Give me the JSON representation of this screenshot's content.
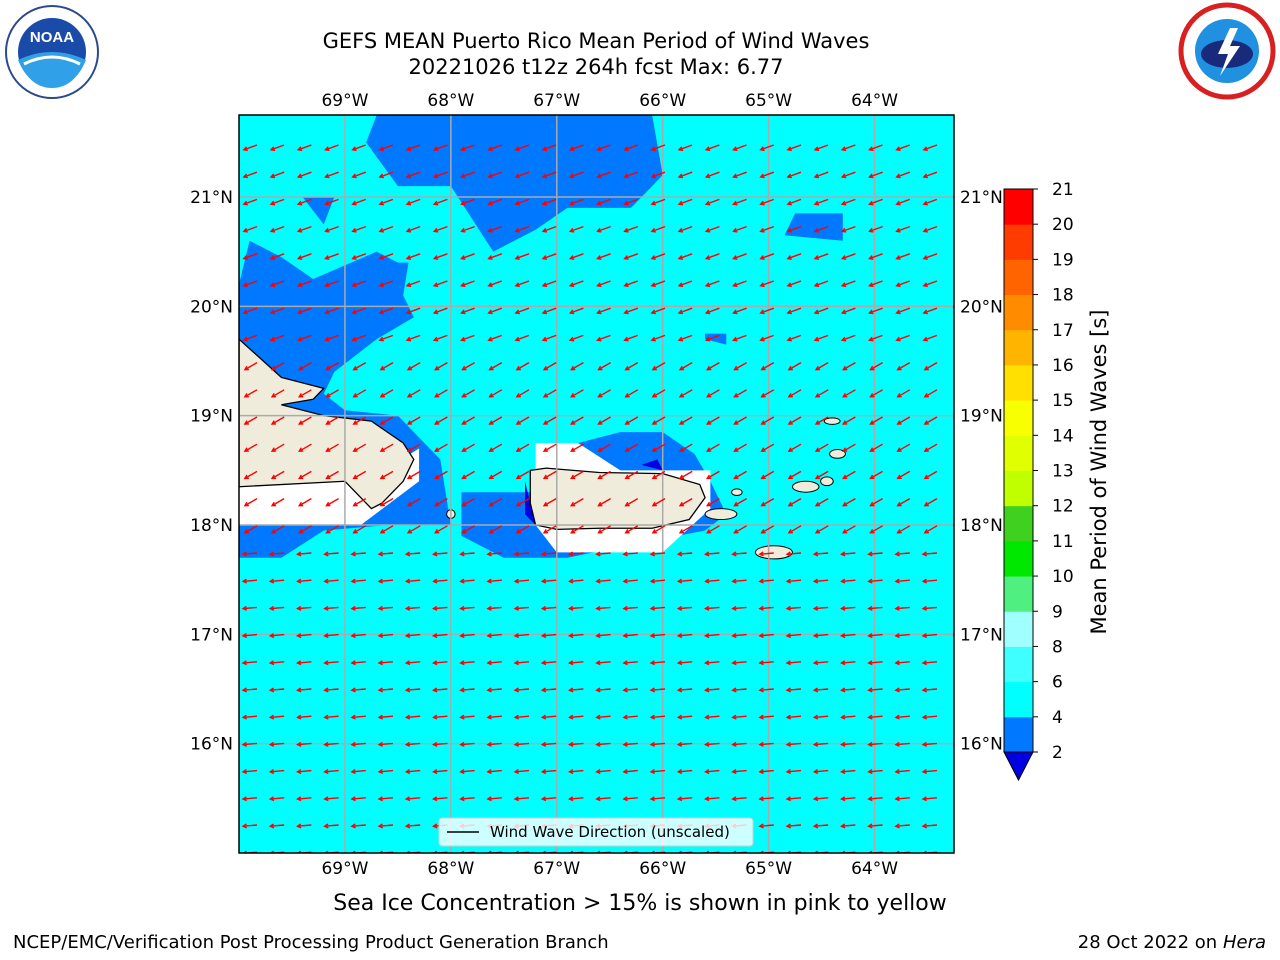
{
  "header": {
    "title_line1": "GEFS MEAN Puerto Rico Mean Period of Wind Waves",
    "title_line2": "20221026 t12z 264h fcst   Max: 6.77"
  },
  "logos": {
    "left": {
      "icon": "noaa-logo",
      "text": "NOAA"
    },
    "right": {
      "icon": "national-weather-service-logo"
    }
  },
  "chart_data": {
    "type": "heatmap",
    "variable": "Mean Period of Wind Waves",
    "max_value": 6.77,
    "axes": {
      "lon_ticks": [
        "69°W",
        "68°W",
        "67°W",
        "66°W",
        "65°W",
        "64°W"
      ],
      "lon_values": [
        -69,
        -68,
        -67,
        -66,
        -65,
        -64
      ],
      "lat_ticks": [
        "21°N",
        "20°N",
        "19°N",
        "18°N",
        "17°N",
        "16°N"
      ],
      "lat_values": [
        21,
        20,
        19,
        18,
        17,
        16
      ],
      "lon_range": [
        -70.0,
        -63.25
      ],
      "lat_range": [
        15.0,
        21.75
      ],
      "grid": true
    },
    "dominant_bin": "4-6 s (cyan) over most of the domain; 2-4 s (blue) near coasts and north of Hispaniola",
    "vectors": {
      "label": "Wind Wave Direction (unscaled)",
      "direction": "mostly toward west / west-southwest",
      "color": "#ff0000"
    },
    "colorbar": {
      "label": "Mean Period of Wind Waves [s]",
      "ticks": [
        2,
        4,
        6,
        8,
        9,
        10,
        11,
        12,
        13,
        14,
        15,
        16,
        17,
        18,
        19,
        20,
        21
      ],
      "extend": "min",
      "colors": [
        "#0000e0",
        "#0078ff",
        "#00ffff",
        "#40ffff",
        "#a0ffff",
        "#50f080",
        "#00e800",
        "#40d020",
        "#c0ff00",
        "#e0ff00",
        "#f8ff00",
        "#ffe000",
        "#ffb400",
        "#ff8c00",
        "#ff6400",
        "#ff3c00",
        "#ff0000"
      ]
    }
  },
  "legend": {
    "label": "Wind Wave Direction (unscaled)"
  },
  "footer": {
    "note": "Sea Ice Concentration > 15% is shown in pink to yellow",
    "left": "NCEP/EMC/Verification Post Processing Product Generation Branch",
    "right_date": "28 Oct 2022 on ",
    "right_host": "Hera"
  }
}
